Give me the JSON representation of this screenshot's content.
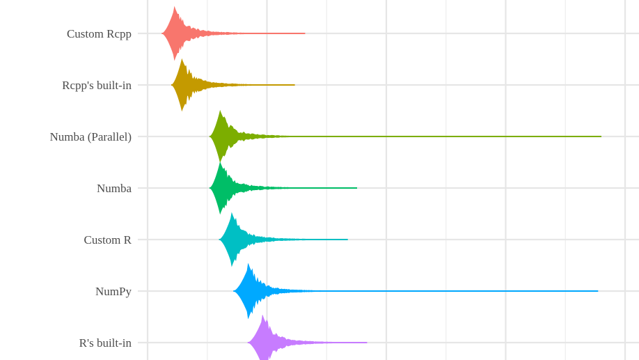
{
  "chart_data": {
    "type": "violin",
    "orientation": "horizontal",
    "title": "",
    "xlabel": "",
    "ylabel": "",
    "x_tick_labels_shown": false,
    "x_range": [
      0,
      1
    ],
    "grid": "on",
    "legend": "none",
    "categories": [
      "Custom Rcpp",
      "Rcpp's built-in",
      "Numba (Parallel)",
      "Numba",
      "Custom R",
      "NumPy",
      "R's built-in"
    ],
    "series": [
      {
        "name": "Custom Rcpp",
        "color": "#F8766D",
        "min": 0.03,
        "mode": 0.055,
        "q_tail": 0.27,
        "max": 0.33
      },
      {
        "name": "Rcpp's built-in",
        "color": "#C49A00",
        "min": 0.05,
        "mode": 0.07,
        "q_tail": 0.23,
        "max": 0.31
      },
      {
        "name": "Numba (Parallel)",
        "color": "#7CAE00",
        "min": 0.13,
        "mode": 0.15,
        "q_tail": 0.31,
        "max": 0.95
      },
      {
        "name": "Numba",
        "color": "#00BE67",
        "min": 0.13,
        "mode": 0.15,
        "q_tail": 0.33,
        "max": 0.44
      },
      {
        "name": "Custom R",
        "color": "#00BFC4",
        "min": 0.15,
        "mode": 0.175,
        "q_tail": 0.38,
        "max": 0.42
      },
      {
        "name": "NumPy",
        "color": "#00A9FF",
        "min": 0.18,
        "mode": 0.21,
        "q_tail": 0.43,
        "max": 0.945
      },
      {
        "name": "R's built-in",
        "color": "#C77CFF",
        "min": 0.21,
        "mode": 0.24,
        "q_tail": 0.38,
        "max": 0.46
      }
    ]
  }
}
